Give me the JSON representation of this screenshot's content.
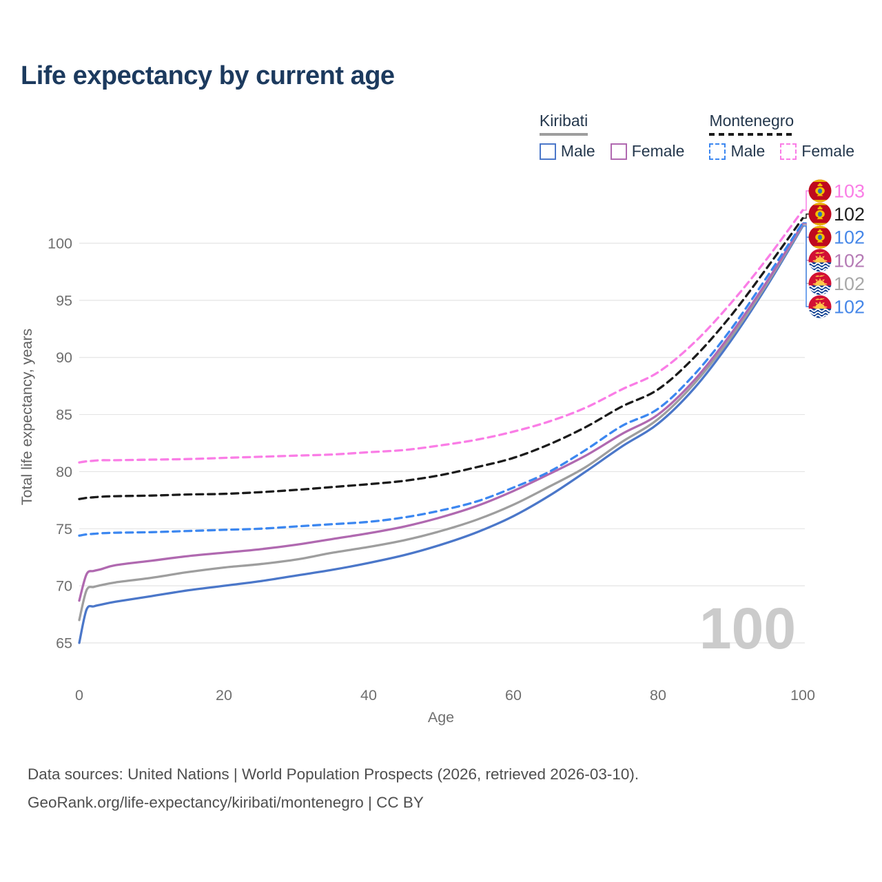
{
  "title": "Life expectancy by current age",
  "legend": {
    "groups": [
      {
        "name": "Kiribati",
        "underline_style": "solid",
        "underline_color": "#9e9e9e",
        "items": [
          {
            "label": "Male",
            "color": "#4b77c9",
            "dashed": false
          },
          {
            "label": "Female",
            "color": "#b069b0",
            "dashed": false
          }
        ]
      },
      {
        "name": "Montenegro",
        "underline_style": "dashed",
        "underline_color": "#1b1b1b",
        "items": [
          {
            "label": "Male",
            "color": "#3c87f0",
            "dashed": true
          },
          {
            "label": "Female",
            "color": "#fa7de6",
            "dashed": true
          }
        ]
      }
    ]
  },
  "chart_data": {
    "type": "line",
    "title": "Life expectancy by current age",
    "xlabel": "Age",
    "ylabel": "Total life expectancy, years",
    "xticks": [
      0,
      20,
      40,
      60,
      80,
      100
    ],
    "yticks": [
      65,
      70,
      75,
      80,
      85,
      90,
      95,
      100
    ],
    "xlim": [
      0,
      100
    ],
    "ylim": [
      63.5,
      104
    ],
    "grid": true,
    "legend_position": "top-right",
    "watermark": "100",
    "x": [
      0,
      1,
      2,
      3,
      5,
      10,
      15,
      20,
      25,
      30,
      35,
      40,
      45,
      50,
      55,
      60,
      65,
      70,
      75,
      80,
      85,
      90,
      95,
      100
    ],
    "series": [
      {
        "id": "kiribati-male",
        "country": "Kiribati",
        "legend_label": "Male",
        "color": "#4b77c9",
        "dashed": false,
        "flag": "kiribati",
        "end_label": "102",
        "end_label_color": "#4687e8",
        "values": [
          65.0,
          67.9,
          68.2,
          68.35,
          68.6,
          69.1,
          69.6,
          70.0,
          70.4,
          70.9,
          71.4,
          72.0,
          72.7,
          73.6,
          74.7,
          76.1,
          77.9,
          80.0,
          82.2,
          84.2,
          87.3,
          91.4,
          96.2,
          101.5
        ]
      },
      {
        "id": "kiribati",
        "country": "Kiribati",
        "legend_label": null,
        "color": "#9e9e9e",
        "dashed": false,
        "flag": "kiribati",
        "end_label": "102",
        "end_label_color": "#a8a8a8",
        "values": [
          67.0,
          69.6,
          69.9,
          70.05,
          70.3,
          70.7,
          71.2,
          71.6,
          71.9,
          72.3,
          72.9,
          73.4,
          74.0,
          74.8,
          75.8,
          77.1,
          78.7,
          80.4,
          82.6,
          84.6,
          87.7,
          91.7,
          96.4,
          101.6
        ]
      },
      {
        "id": "kiribati-female",
        "country": "Kiribati",
        "legend_label": "Female",
        "color": "#b069b0",
        "dashed": false,
        "flag": "kiribati",
        "end_label": "102",
        "end_label_color": "#b57ab5",
        "values": [
          68.7,
          71.0,
          71.3,
          71.45,
          71.8,
          72.2,
          72.6,
          72.9,
          73.2,
          73.6,
          74.1,
          74.6,
          75.2,
          76.0,
          77.0,
          78.3,
          79.8,
          81.4,
          83.3,
          85.0,
          88.0,
          92.0,
          96.6,
          101.7
        ]
      },
      {
        "id": "montenegro-male",
        "country": "Montenegro",
        "legend_label": "Male",
        "color": "#3c87f0",
        "dashed": true,
        "flag": "montenegro",
        "end_label": "102",
        "end_label_color": "#4687e8",
        "values": [
          74.4,
          74.5,
          74.55,
          74.6,
          74.65,
          74.7,
          74.8,
          74.9,
          75.0,
          75.2,
          75.4,
          75.6,
          76.0,
          76.6,
          77.4,
          78.6,
          80.0,
          81.9,
          84.0,
          85.5,
          88.5,
          92.4,
          97.0,
          101.8
        ]
      },
      {
        "id": "montenegro",
        "country": "Montenegro",
        "legend_label": null,
        "color": "#1b1b1b",
        "dashed": true,
        "flag": "montenegro",
        "end_label": "102",
        "end_label_color": "#1f1f1f",
        "values": [
          77.6,
          77.7,
          77.75,
          77.8,
          77.85,
          77.9,
          78.0,
          78.05,
          78.2,
          78.4,
          78.65,
          78.9,
          79.2,
          79.7,
          80.4,
          81.2,
          82.4,
          83.9,
          85.7,
          87.2,
          90.0,
          93.6,
          97.8,
          102.2
        ]
      },
      {
        "id": "montenegro-female",
        "country": "Montenegro",
        "legend_label": "Female",
        "color": "#fa7de6",
        "dashed": true,
        "flag": "montenegro",
        "end_label": "103",
        "end_label_color": "#fa7de6",
        "values": [
          80.8,
          80.9,
          80.95,
          81.0,
          81.0,
          81.05,
          81.1,
          81.2,
          81.3,
          81.4,
          81.5,
          81.7,
          81.9,
          82.3,
          82.8,
          83.5,
          84.4,
          85.6,
          87.2,
          88.7,
          91.3,
          94.7,
          98.6,
          102.9
        ]
      }
    ]
  },
  "footer": {
    "line1": "Data sources: United Nations | World Population Prospects (2026, retrieved 2026-03-10).",
    "line2": "GeoRank.org/life-expectancy/kiribati/montenegro | CC BY"
  }
}
